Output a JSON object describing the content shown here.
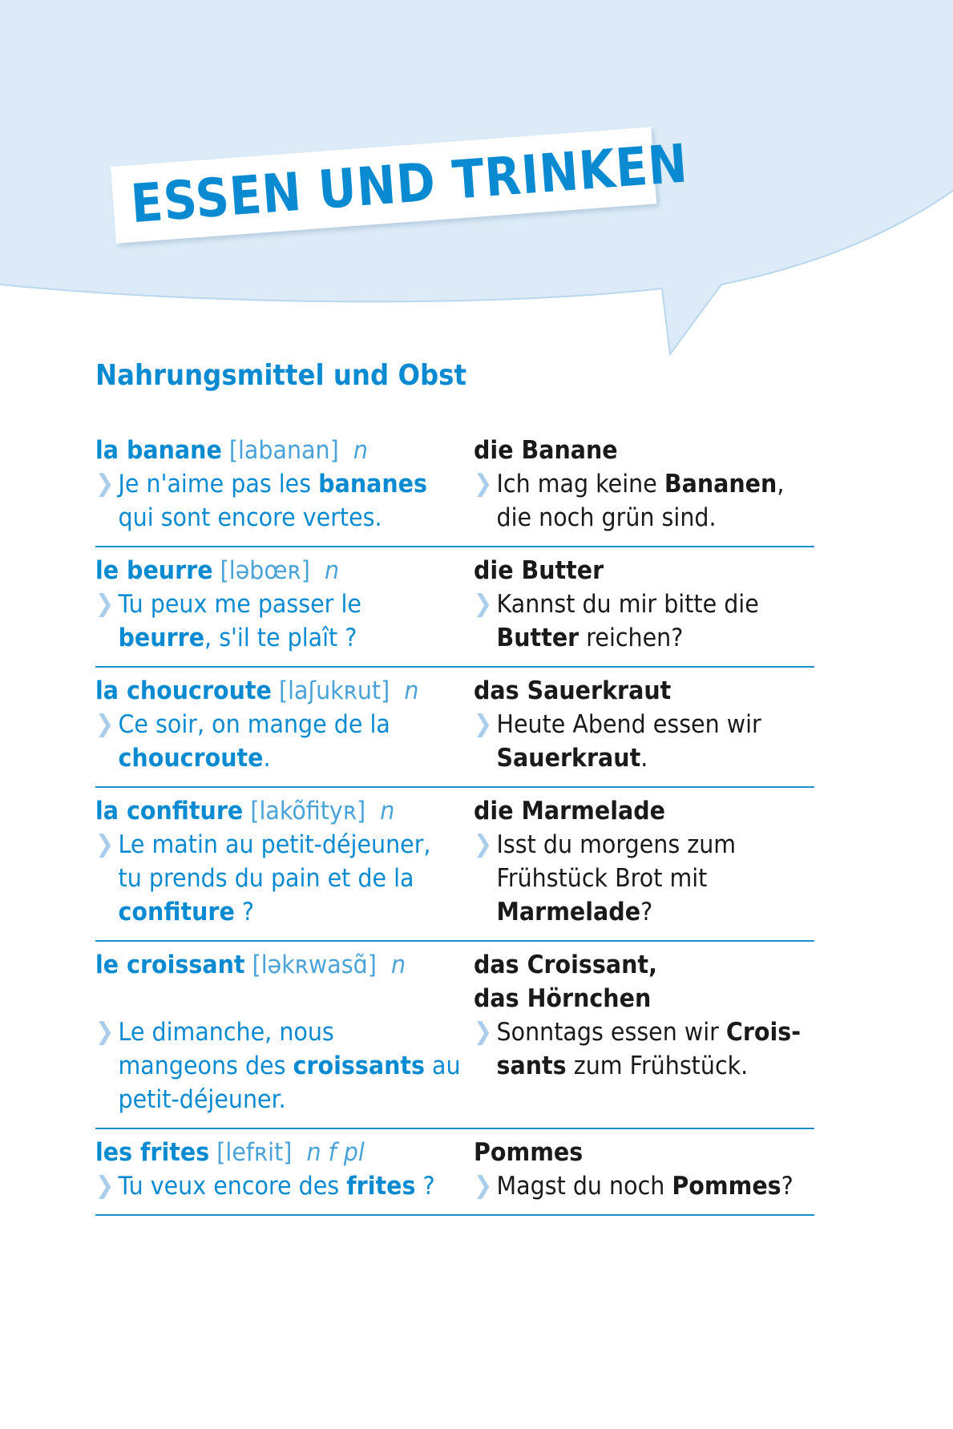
{
  "colors": {
    "accent": "#0a8bd1",
    "bubble": "#dcebf7",
    "chevron": "#a9cdea",
    "text": "#1a1a1a"
  },
  "title": "ESSEN UND TRINKEN",
  "section_heading": "Nahrungsmittel und Obst",
  "entries": [
    {
      "fr_head": "la banane",
      "phonetic": "[labanan]",
      "pos": "n",
      "de_head": [
        "die Banane"
      ],
      "fr_example": [
        [
          {
            "t": "Je n'aime pas les "
          },
          {
            "t": "bananes",
            "b": true
          }
        ],
        [
          {
            "t": "qui sont encore vertes."
          }
        ]
      ],
      "de_example": [
        [
          {
            "t": "Ich mag keine "
          },
          {
            "t": "Bananen",
            "b": true
          },
          {
            "t": ","
          }
        ],
        [
          {
            "t": "die noch grün sind."
          }
        ]
      ]
    },
    {
      "fr_head": "le beurre",
      "phonetic": "[ləbœʀ]",
      "pos": "n",
      "de_head": [
        "die Butter"
      ],
      "fr_example": [
        [
          {
            "t": "Tu peux me passer le"
          }
        ],
        [
          {
            "t": "beurre",
            "b": true
          },
          {
            "t": ", s'il te plaît ?"
          }
        ]
      ],
      "de_example": [
        [
          {
            "t": "Kannst du mir bitte die"
          }
        ],
        [
          {
            "t": "Butter",
            "b": true
          },
          {
            "t": " reichen?"
          }
        ]
      ]
    },
    {
      "fr_head": "la choucroute",
      "phonetic": "[laʃukʀut]",
      "pos": "n",
      "de_head": [
        "das Sauerkraut"
      ],
      "fr_example": [
        [
          {
            "t": "Ce soir, on mange de la"
          }
        ],
        [
          {
            "t": "choucroute",
            "b": true
          },
          {
            "t": "."
          }
        ]
      ],
      "de_example": [
        [
          {
            "t": "Heute Abend essen wir"
          }
        ],
        [
          {
            "t": "Sauerkraut",
            "b": true
          },
          {
            "t": "."
          }
        ]
      ]
    },
    {
      "fr_head": "la confiture",
      "phonetic": "[lakõfityʀ]",
      "pos": "n",
      "de_head": [
        "die Marmelade"
      ],
      "fr_example": [
        [
          {
            "t": "Le matin au petit-déjeuner,"
          }
        ],
        [
          {
            "t": "tu prends du pain et de la"
          }
        ],
        [
          {
            "t": "confiture",
            "b": true
          },
          {
            "t": " ?"
          }
        ]
      ],
      "de_example": [
        [
          {
            "t": "Isst du morgens zum"
          }
        ],
        [
          {
            "t": "Frühstück Brot mit"
          }
        ],
        [
          {
            "t": "Marmelade",
            "b": true
          },
          {
            "t": "?"
          }
        ]
      ]
    },
    {
      "fr_head": "le croissant",
      "phonetic": "[ləkʀwasɑ̃]",
      "pos": "n",
      "de_head": [
        "das Croissant,",
        "das Hörnchen"
      ],
      "fr_example": [
        [
          {
            "t": "Le dimanche, nous"
          }
        ],
        [
          {
            "t": "mangeons des "
          },
          {
            "t": "croissants",
            "b": true
          },
          {
            "t": " au"
          }
        ],
        [
          {
            "t": "petit-déjeuner."
          }
        ]
      ],
      "de_example": [
        [
          {
            "t": "Sonntags essen wir "
          },
          {
            "t": "Crois-",
            "b": true
          }
        ],
        [
          {
            "t": "sants",
            "b": true
          },
          {
            "t": " zum Frühstück."
          }
        ]
      ]
    },
    {
      "fr_head": "les frites",
      "phonetic": "[lefʀit]",
      "pos": "n f pl",
      "de_head": [
        "Pommes"
      ],
      "fr_example": [
        [
          {
            "t": "Tu veux encore des "
          },
          {
            "t": "frites",
            "b": true
          },
          {
            "t": " ?"
          }
        ]
      ],
      "de_example": [
        [
          {
            "t": "Magst du noch "
          },
          {
            "t": "Pommes",
            "b": true
          },
          {
            "t": "?"
          }
        ]
      ]
    }
  ]
}
